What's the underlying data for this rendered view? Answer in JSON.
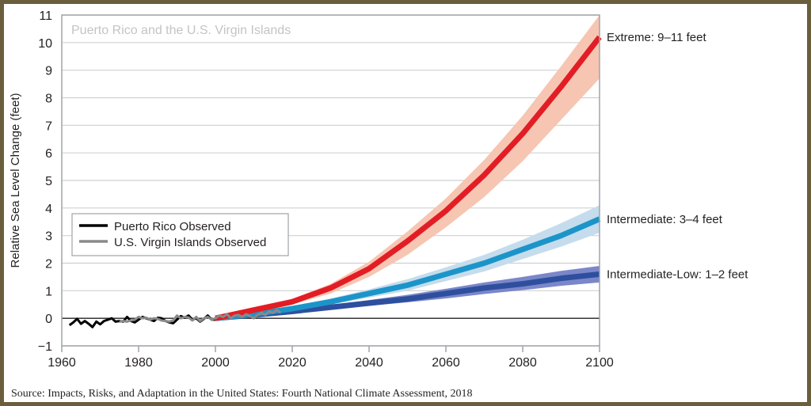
{
  "chart_data": {
    "type": "line",
    "title": "Puerto Rico and the U.S. Virgin Islands",
    "xlabel": "",
    "ylabel": "Relative Sea Level Change (feet)",
    "xlim": [
      1960,
      2100
    ],
    "ylim": [
      -1,
      11
    ],
    "xticks": [
      1960,
      1980,
      2000,
      2020,
      2040,
      2060,
      2080,
      2100
    ],
    "yticks": [
      -1,
      0,
      1,
      2,
      3,
      4,
      5,
      6,
      7,
      8,
      9,
      10,
      11
    ],
    "ytick_labels": [
      "−1",
      "0",
      "1",
      "2",
      "3",
      "4",
      "5",
      "6",
      "7",
      "8",
      "9",
      "10",
      "11"
    ],
    "grid": true,
    "legend_position": "middle-left",
    "source": "Source: Impacts, Risks, and Adaptation in the United States: Fourth National Climate Assessment, 2018",
    "projection_years": [
      2000,
      2010,
      2020,
      2030,
      2040,
      2050,
      2060,
      2070,
      2080,
      2090,
      2100
    ],
    "scenarios": [
      {
        "label": "Extreme: 9–11 feet",
        "color": "#e31d25",
        "band_color": "#f6c6b3",
        "values": [
          0,
          0.3,
          0.6,
          1.1,
          1.8,
          2.8,
          3.9,
          5.2,
          6.7,
          8.4,
          10.2
        ],
        "low": [
          0,
          0.25,
          0.5,
          0.9,
          1.5,
          2.3,
          3.3,
          4.4,
          5.7,
          7.2,
          8.7
        ],
        "high": [
          0,
          0.35,
          0.7,
          1.25,
          2.05,
          3.15,
          4.35,
          5.75,
          7.35,
          9.15,
          11.0
        ]
      },
      {
        "label": "Intermediate: 3–4 feet",
        "color": "#1b95c9",
        "band_color": "#c5dcec",
        "values": [
          0,
          0.15,
          0.35,
          0.6,
          0.9,
          1.2,
          1.6,
          2.0,
          2.5,
          3.0,
          3.6
        ],
        "low": [
          0,
          0.12,
          0.3,
          0.5,
          0.75,
          1.0,
          1.35,
          1.7,
          2.15,
          2.6,
          3.1
        ],
        "high": [
          0,
          0.18,
          0.42,
          0.72,
          1.05,
          1.42,
          1.85,
          2.3,
          2.85,
          3.45,
          4.1
        ]
      },
      {
        "label": "Intermediate-Low: 1–2 feet",
        "color": "#2e4f9e",
        "band_color": "#7b87c9",
        "values": [
          0,
          0.12,
          0.25,
          0.4,
          0.55,
          0.7,
          0.9,
          1.1,
          1.25,
          1.45,
          1.6
        ],
        "low": [
          0,
          0.1,
          0.2,
          0.32,
          0.45,
          0.58,
          0.72,
          0.88,
          1.02,
          1.18,
          1.3
        ],
        "high": [
          0,
          0.15,
          0.3,
          0.48,
          0.66,
          0.85,
          1.07,
          1.3,
          1.5,
          1.72,
          1.9
        ]
      }
    ],
    "observed": [
      {
        "name": "Puerto Rico Observed",
        "color": "#000000",
        "x": [
          1962,
          1963,
          1964,
          1965,
          1966,
          1967,
          1968,
          1969,
          1970,
          1971,
          1972,
          1973,
          1974,
          1975,
          1976,
          1977,
          1978,
          1979,
          1980,
          1981,
          1982,
          1983,
          1984,
          1985,
          1986,
          1987,
          1988,
          1989,
          1990,
          1991,
          1992,
          1993,
          1994,
          1995,
          1996,
          1997,
          1998,
          1999,
          2000
        ],
        "y": [
          -0.25,
          -0.15,
          -0.02,
          -0.2,
          -0.1,
          -0.2,
          -0.32,
          -0.12,
          -0.22,
          -0.1,
          -0.05,
          0.0,
          -0.12,
          -0.1,
          -0.12,
          0.05,
          -0.1,
          -0.15,
          -0.05,
          0.05,
          0.0,
          -0.05,
          -0.1,
          0.02,
          0.0,
          -0.1,
          -0.15,
          -0.18,
          -0.05,
          0.08,
          0.02,
          0.1,
          -0.05,
          0.0,
          -0.12,
          -0.02,
          0.1,
          -0.05,
          -0.05
        ]
      },
      {
        "name": "U.S. Virgin Islands Observed",
        "color": "#8a8a8a",
        "x": [
          1975,
          1976,
          1977,
          1978,
          1979,
          1980,
          1981,
          1982,
          1983,
          1984,
          1985,
          1986,
          1987,
          1988,
          1989,
          1990,
          1991,
          1992,
          1993,
          1994,
          1995,
          1996,
          1997,
          1998,
          1999,
          2000,
          2001,
          2002,
          2003,
          2004,
          2005,
          2006,
          2007,
          2008,
          2009,
          2010,
          2011,
          2012,
          2013,
          2014,
          2015,
          2016,
          2017
        ],
        "y": [
          -0.12,
          -0.1,
          -0.12,
          -0.08,
          -0.05,
          0.05,
          0.0,
          0.02,
          -0.05,
          0.0,
          -0.02,
          -0.08,
          -0.1,
          -0.12,
          -0.08,
          0.1,
          0.0,
          0.05,
          0.03,
          -0.08,
          0.05,
          -0.1,
          0.0,
          0.05,
          -0.05,
          0.0,
          0.1,
          0.05,
          0.15,
          0.0,
          0.1,
          0.12,
          0.05,
          0.15,
          0.08,
          0.0,
          0.12,
          0.2,
          0.12,
          0.25,
          0.2,
          0.3,
          0.2
        ]
      }
    ]
  }
}
